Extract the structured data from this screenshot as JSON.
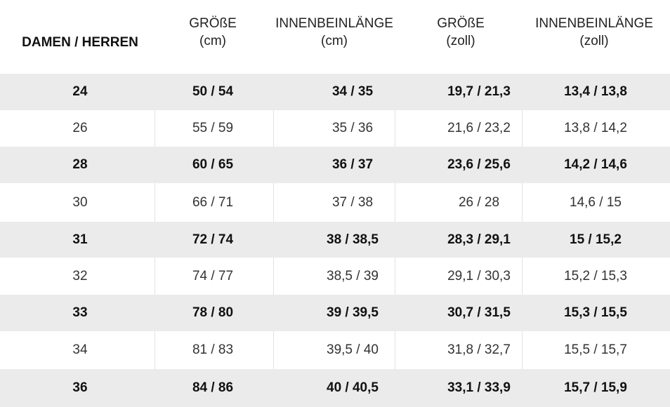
{
  "header": {
    "col1": "DAMEN / HERREN",
    "col2_line1": "GRÖßE",
    "col2_line2": "(cm)",
    "col3_line1": "INNENBEINLÄNGE",
    "col3_line2": "(cm)",
    "col4_line1": "GRÖßE",
    "col4_line2": "(zoll)",
    "col5_line1": "INNENBEINLÄNGE",
    "col5_line2": "(zoll)"
  },
  "rows": [
    [
      "24",
      "50 / 54",
      "34 / 35",
      "19,7 / 21,3",
      "13,4 / 13,8"
    ],
    [
      "26",
      "55 / 59",
      "35 / 36",
      "21,6 / 23,2",
      "13,8 / 14,2"
    ],
    [
      "28",
      "60 / 65",
      "36 / 37",
      "23,6 / 25,6",
      "14,2 / 14,6"
    ],
    [
      "30",
      "66 / 71",
      "37 / 38",
      "26 / 28",
      "14,6 / 15"
    ],
    [
      "31",
      "72 / 74",
      "38 / 38,5",
      "28,3 / 29,1",
      "15 / 15,2"
    ],
    [
      "32",
      "74 / 77",
      "38,5 / 39",
      "29,1 / 30,3",
      "15,2 / 15,3"
    ],
    [
      "33",
      "78 / 80",
      "39 / 39,5",
      "30,7 / 31,5",
      "15,3 / 15,5"
    ],
    [
      "34",
      "81 / 83",
      "39,5 / 40",
      "31,8 / 32,7",
      "15,5 / 15,7"
    ],
    [
      "36",
      "84 / 86",
      "40 / 40,5",
      "33,1 / 33,9",
      "15,7 / 15,9"
    ]
  ],
  "colors": {
    "shaded_row": "#ebebeb",
    "plain_row": "#ffffff",
    "text": "#222222"
  }
}
